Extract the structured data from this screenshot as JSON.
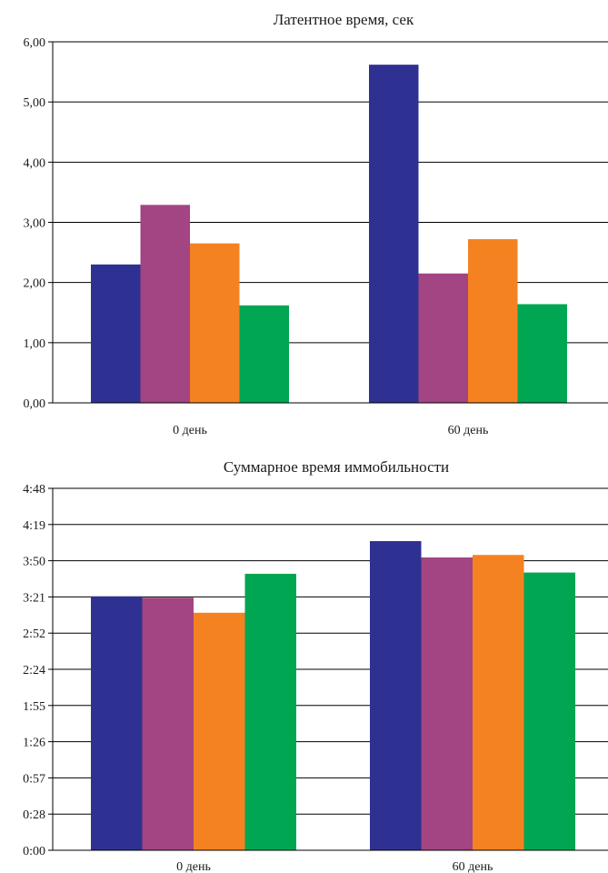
{
  "chart_data": [
    {
      "type": "bar",
      "title": "Латентное время, сек",
      "categories": [
        "0 день",
        "60 день"
      ],
      "series": [
        {
          "values": [
            2.3,
            5.62
          ],
          "color": "#2e3192"
        },
        {
          "values": [
            3.29,
            2.15
          ],
          "color": "#a24582"
        },
        {
          "values": [
            2.65,
            2.72
          ],
          "color": "#f58220"
        },
        {
          "values": [
            1.62,
            1.64
          ],
          "color": "#00a651"
        }
      ],
      "yticks": [
        "0,00",
        "1,00",
        "2,00",
        "3,00",
        "4,00",
        "5,00",
        "6,00"
      ],
      "ylim": [
        0,
        6
      ],
      "grid": true,
      "legend": "none"
    },
    {
      "type": "bar",
      "title": "Суммарное время иммобильности",
      "categories": [
        "0 день",
        "60 день"
      ],
      "value_unit": "seconds",
      "series": [
        {
          "values": [
            202,
            246
          ],
          "color": "#2e3192"
        },
        {
          "values": [
            201,
            233
          ],
          "color": "#a24582"
        },
        {
          "values": [
            189,
            235
          ],
          "color": "#f58220"
        },
        {
          "values": [
            220,
            221
          ],
          "color": "#00a651"
        }
      ],
      "yticks": [
        "0:00",
        "0:28",
        "0:57",
        "1:26",
        "1:55",
        "2:24",
        "2:52",
        "3:21",
        "3:50",
        "4:19",
        "4:48"
      ],
      "ylim": [
        0,
        288
      ],
      "grid": true,
      "legend": "none"
    }
  ]
}
